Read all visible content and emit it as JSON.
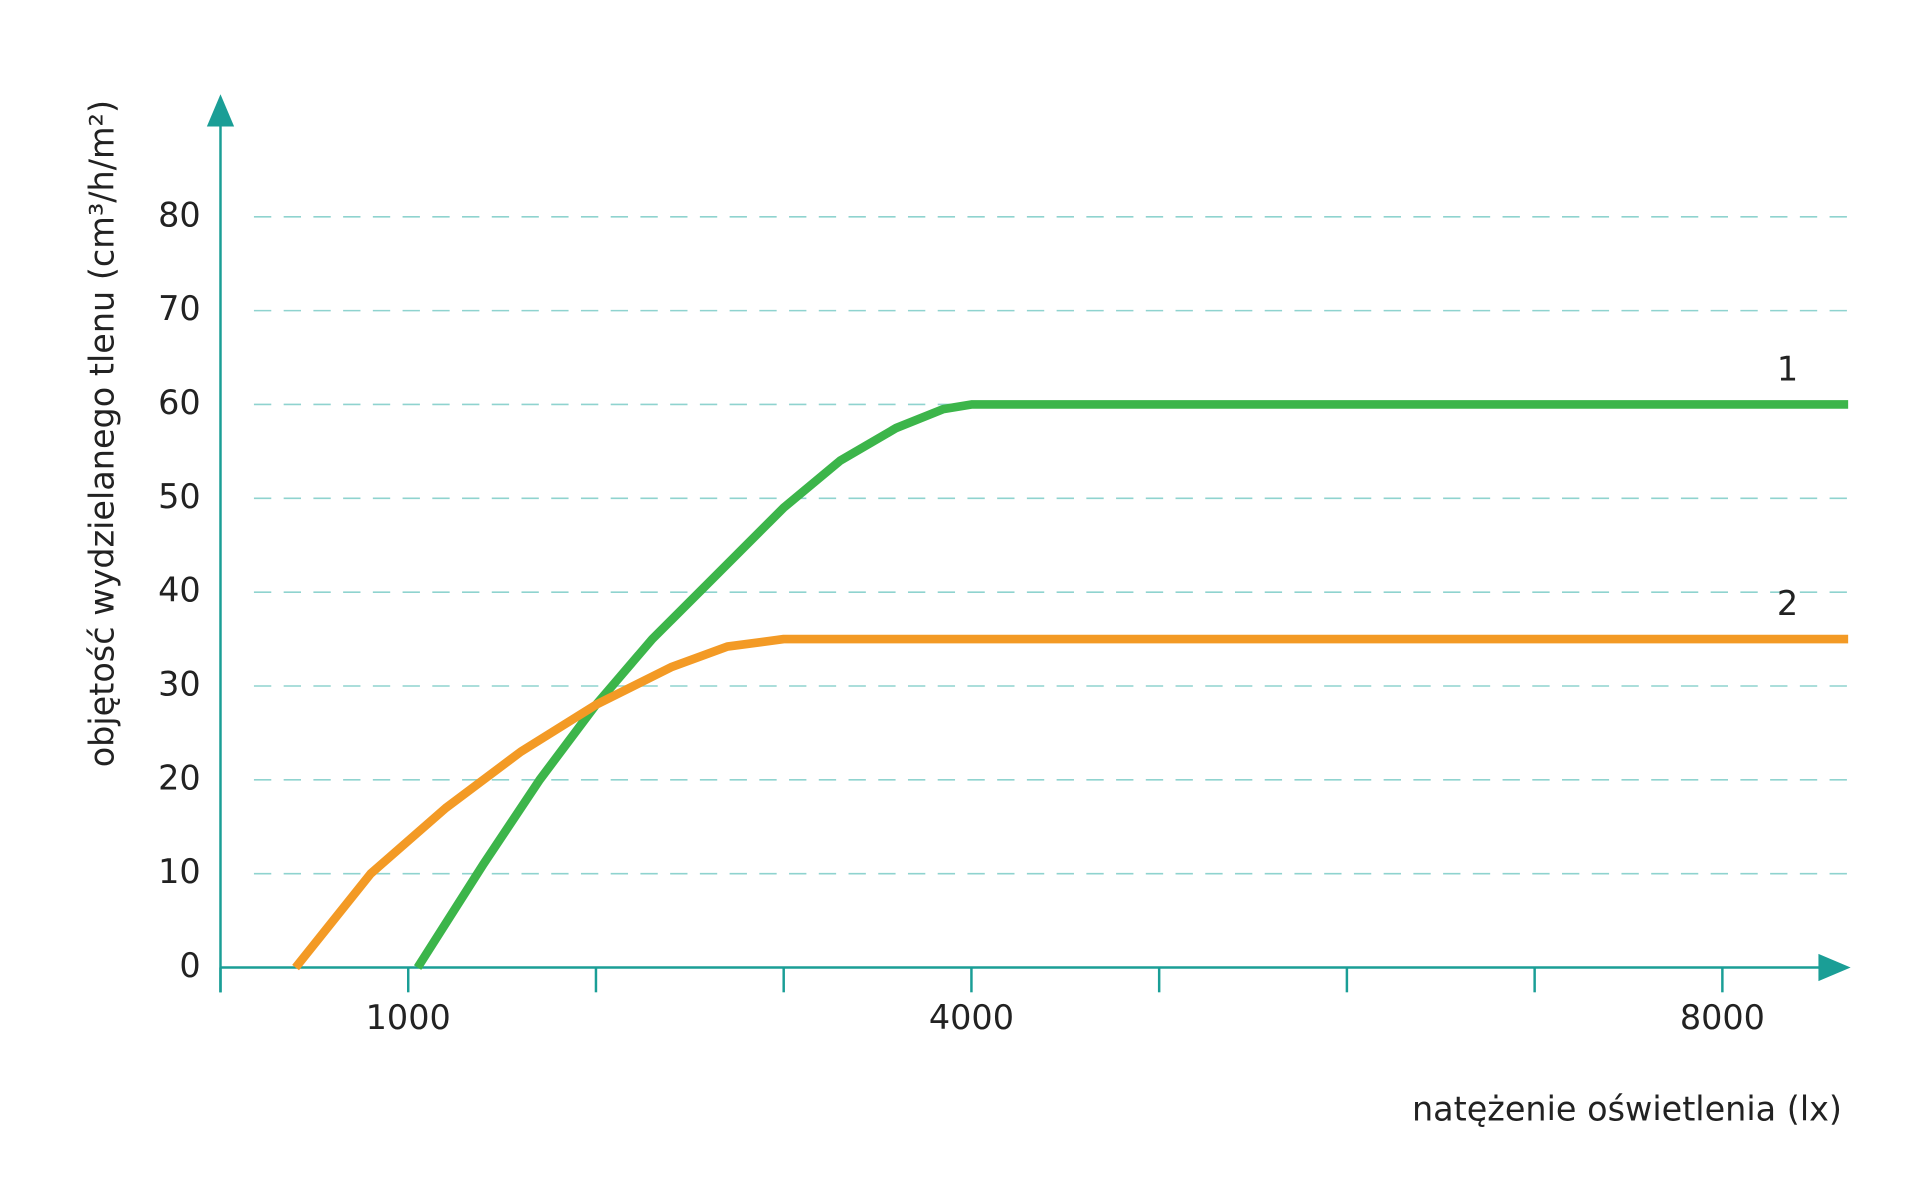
{
  "chart_data": {
    "type": "line",
    "x_label": "natężenie oświetlenia (lx)",
    "y_label": "objętość wydzielanego tlenu  (cm³/h/m²)",
    "xlim": [
      0,
      8670
    ],
    "ylim": [
      0,
      92
    ],
    "xticks": [
      1000,
      4000,
      8000
    ],
    "xminorticks": [
      0,
      2000,
      3000,
      5000,
      6000,
      7000
    ],
    "yticks": [
      0,
      10,
      20,
      30,
      40,
      50,
      60,
      70,
      80
    ],
    "grid": true,
    "series": [
      {
        "name": "1",
        "color": "#3cb54a",
        "x": [
          1050,
          1400,
          1700,
          2000,
          2300,
          2600,
          3000,
          3300,
          3600,
          3850,
          4000,
          8670
        ],
        "values": [
          0,
          11,
          20,
          28,
          35,
          41,
          49,
          54,
          57.5,
          59.5,
          60,
          60
        ]
      },
      {
        "name": "2",
        "color": "#f39a25",
        "x": [
          400,
          800,
          1200,
          1600,
          2000,
          2400,
          2700,
          3000,
          8670
        ],
        "values": [
          0,
          10,
          17,
          23,
          28,
          32,
          34.2,
          35,
          35
        ]
      }
    ]
  }
}
